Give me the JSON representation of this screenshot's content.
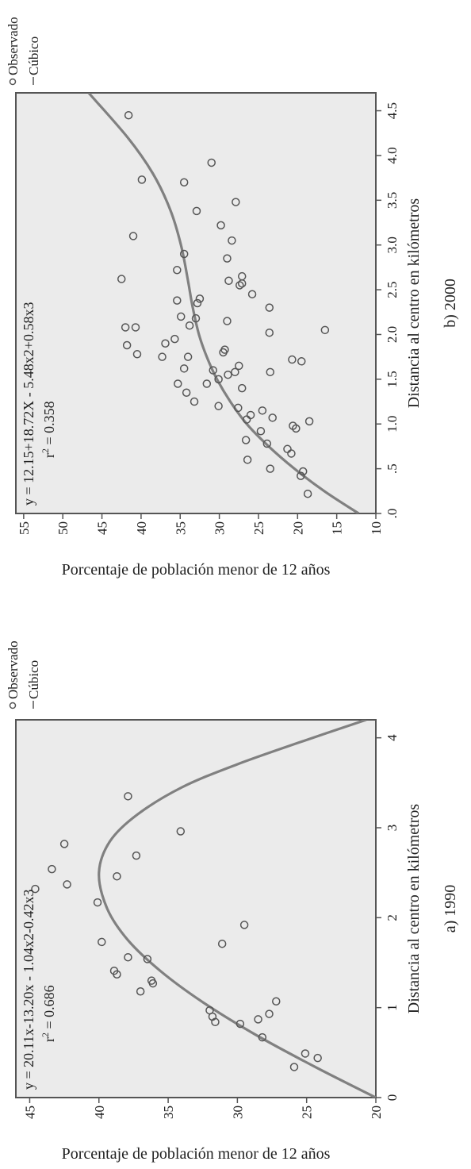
{
  "chart_data": [
    {
      "type": "scatter",
      "panel_label": "a) 1990",
      "equation": "y = 20.11x-13.20x - 1.04x2-0.42x3",
      "r2_prefix": "r",
      "r2_sup": "2",
      "r2_value": " = 0.686",
      "xlabel": "Distancia al centro en kilómetros",
      "ylabel": "Porcentaje de población menor de 12 años",
      "xlim": [
        0,
        4.2
      ],
      "ylim": [
        20,
        46
      ],
      "xticks": [
        0,
        1,
        2,
        3,
        4
      ],
      "xtick_labels": [
        "0",
        "1",
        "2",
        "3",
        "4"
      ],
      "yticks": [
        20,
        25,
        30,
        35,
        40,
        45
      ],
      "ytick_labels": [
        "20",
        "25",
        "30",
        "35",
        "40",
        "45"
      ],
      "grid": false,
      "legend_position": "top-right",
      "legend": [
        {
          "marker": "circle",
          "label": "Observado"
        },
        {
          "marker": "line",
          "label": "Cúbico"
        }
      ],
      "series": [
        {
          "name": "Observado",
          "kind": "points",
          "x": [
            0.34,
            0.44,
            0.49,
            0.67,
            0.82,
            0.84,
            0.87,
            0.9,
            0.93,
            0.97,
            1.07,
            1.18,
            1.27,
            1.3,
            1.37,
            1.41,
            1.54,
            1.56,
            1.71,
            1.73,
            1.92,
            2.17,
            2.32,
            2.37,
            2.46,
            2.54,
            2.69,
            2.82,
            2.96,
            3.35
          ],
          "y": [
            25.9,
            24.2,
            25.1,
            28.2,
            29.8,
            31.6,
            28.5,
            31.8,
            27.7,
            32.0,
            27.2,
            37.0,
            36.1,
            36.2,
            38.7,
            38.9,
            36.5,
            37.9,
            31.1,
            39.8,
            29.5,
            40.1,
            44.6,
            42.3,
            38.7,
            43.4,
            37.3,
            42.5,
            34.1,
            37.9
          ]
        },
        {
          "name": "Cúbico",
          "kind": "curve",
          "x": [
            0.0,
            0.35,
            0.7,
            1.05,
            1.4,
            1.75,
            2.1,
            2.5,
            2.85,
            3.15,
            3.45,
            3.7,
            3.95,
            4.2
          ],
          "y": [
            20.0,
            24.5,
            28.7,
            32.4,
            35.5,
            37.9,
            39.4,
            40.0,
            39.2,
            37.2,
            34.0,
            30.1,
            25.5,
            20.7
          ]
        }
      ]
    },
    {
      "type": "scatter",
      "panel_label": "b) 2000",
      "equation": "y = 12.15+18.72X - 5.48x2+0.58x3",
      "r2_prefix": "r",
      "r2_sup": "2",
      "r2_value": " = 0.358",
      "xlabel": "Distancia al centro en kilómetros",
      "ylabel": "Porcentaje de población menor de 12 años",
      "xlim": [
        0,
        4.7
      ],
      "ylim": [
        10,
        56
      ],
      "xticks": [
        0,
        0.5,
        1,
        1.5,
        2,
        2.5,
        3,
        3.5,
        4,
        4.5
      ],
      "xtick_labels": [
        ".0",
        ".5",
        "1.0",
        "1.5",
        "2.0",
        "2.5",
        "3.0",
        "3.5",
        "4.0",
        "4.5"
      ],
      "yticks": [
        10,
        15,
        20,
        25,
        30,
        35,
        40,
        45,
        50,
        55
      ],
      "ytick_labels": [
        "10",
        "15",
        "20",
        "25",
        "30",
        "35",
        "40",
        "45",
        "50",
        "55"
      ],
      "grid": false,
      "legend_position": "top-right",
      "legend": [
        {
          "marker": "circle",
          "label": "Observado"
        },
        {
          "marker": "line",
          "label": "Cúbico"
        }
      ],
      "series": [
        {
          "name": "Observado",
          "kind": "points",
          "x": [
            0.22,
            0.42,
            0.47,
            0.5,
            0.6,
            0.67,
            0.72,
            0.78,
            0.82,
            0.92,
            0.95,
            0.98,
            1.03,
            1.05,
            1.07,
            1.1,
            1.15,
            1.18,
            1.2,
            1.25,
            1.35,
            1.4,
            1.45,
            1.45,
            1.5,
            1.55,
            1.58,
            1.58,
            1.6,
            1.62,
            1.65,
            1.7,
            1.72,
            1.75,
            1.75,
            1.78,
            1.8,
            1.83,
            1.88,
            1.9,
            1.95,
            2.02,
            2.05,
            2.08,
            2.08,
            2.1,
            2.15,
            2.18,
            2.2,
            2.3,
            2.35,
            2.38,
            2.4,
            2.45,
            2.55,
            2.57,
            2.6,
            2.62,
            2.65,
            2.72,
            2.85,
            2.9,
            3.05,
            3.1,
            3.22,
            3.38,
            3.48,
            3.7,
            3.73,
            3.92,
            4.45
          ],
          "y": [
            18.7,
            19.6,
            19.3,
            23.5,
            26.4,
            20.8,
            21.3,
            23.9,
            26.6,
            24.7,
            20.2,
            20.6,
            18.5,
            26.5,
            23.2,
            26.0,
            24.5,
            27.6,
            30.1,
            33.2,
            34.2,
            27.1,
            35.3,
            31.6,
            30.1,
            28.9,
            23.5,
            28.0,
            30.8,
            34.5,
            27.5,
            19.5,
            20.7,
            34.0,
            37.3,
            40.5,
            29.5,
            29.3,
            41.8,
            36.9,
            35.7,
            23.6,
            16.5,
            42.0,
            40.7,
            33.8,
            29.0,
            33.0,
            34.9,
            23.6,
            32.8,
            35.4,
            32.5,
            25.8,
            27.4,
            27.1,
            28.8,
            42.5,
            27.1,
            35.4,
            29.0,
            34.5,
            28.4,
            41.0,
            29.8,
            32.9,
            27.9,
            34.5,
            39.9,
            31.0,
            41.6
          ]
        },
        {
          "name": "Cúbico",
          "kind": "curve",
          "x": [
            0.0,
            0.25,
            0.5,
            0.75,
            1.0,
            1.25,
            1.5,
            1.75,
            2.0,
            2.3,
            2.6,
            3.0,
            3.4,
            3.8,
            4.2,
            4.7
          ],
          "y": [
            12.2,
            16.6,
            20.4,
            23.7,
            26.5,
            28.6,
            30.3,
            31.6,
            32.6,
            33.4,
            34.0,
            34.9,
            36.3,
            38.5,
            41.7,
            46.7
          ]
        }
      ]
    }
  ]
}
